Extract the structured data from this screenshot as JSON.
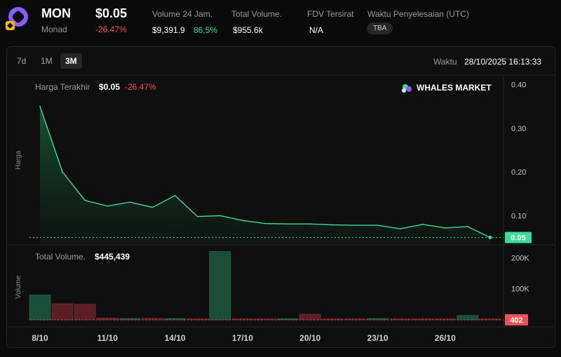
{
  "header": {
    "ticker": "MON",
    "chain": "Monad",
    "price": "$0.05",
    "price_change": "-26.47%",
    "volume24_label": "Volume 24 Jam.",
    "volume24_value": "$9,391.9",
    "volume24_change": "86.5%",
    "total_volume_label": "Total Volume.",
    "total_volume_value": "$955.6k",
    "fdv_label": "FDV Tersirat",
    "fdv_value": "N/A",
    "settle_label": "Waktu Penyelesaian (UTC)",
    "settle_value": "TBA"
  },
  "toolbar": {
    "timeframes": [
      "7d",
      "1M",
      "3M"
    ],
    "active": "3M",
    "time_label": "Waktu",
    "time_value": "28/10/2025 16:13:33"
  },
  "colors": {
    "accent_green": "#3ddc97",
    "down_red": "#f0505a",
    "brand_purple": "#8b5cf6"
  },
  "chart_data": [
    {
      "type": "area",
      "legend_label": "Harga Terakhir",
      "legend_value": "$0.05",
      "legend_change": "-26.47%",
      "watermark": "WHALES MARKET",
      "ylabel": "Harga",
      "ylim": [
        0.035,
        0.42
      ],
      "yticks": [
        0.1,
        0.2,
        0.3,
        0.4
      ],
      "ytick_labels": [
        "0.10",
        "0.20",
        "0.30",
        "0.40"
      ],
      "last_price_label": "0.05",
      "last_price": 0.05,
      "x_day_index": [
        0,
        1,
        2,
        3,
        4,
        5,
        6,
        7,
        8,
        9,
        10,
        11,
        12,
        13,
        14,
        15,
        16,
        17,
        18,
        19,
        20
      ],
      "values": [
        0.35,
        0.2,
        0.135,
        0.122,
        0.131,
        0.119,
        0.146,
        0.098,
        0.1,
        0.089,
        0.082,
        0.081,
        0.081,
        0.079,
        0.078,
        0.078,
        0.07,
        0.08,
        0.072,
        0.075,
        0.05
      ]
    },
    {
      "type": "bar",
      "legend_label": "Total Volume.",
      "legend_value": "$445,439",
      "ylabel": "Volume",
      "ylim": [
        0,
        235000
      ],
      "yticks": [
        100000,
        200000
      ],
      "ytick_labels": [
        "100K",
        "200K"
      ],
      "last_volume_label": "402",
      "x_day_index": [
        0,
        1,
        2,
        3,
        4,
        5,
        6,
        7,
        8,
        9,
        10,
        11,
        12,
        13,
        14,
        15,
        16,
        17,
        18,
        19,
        20
      ],
      "values": [
        80000,
        52000,
        50000,
        6000,
        4000,
        5000,
        4000,
        3000,
        220000,
        3000,
        2000,
        3000,
        18000,
        2000,
        2000,
        4000,
        2000,
        2000,
        2000,
        14000,
        402
      ],
      "up": [
        true,
        false,
        false,
        false,
        true,
        false,
        true,
        false,
        true,
        false,
        false,
        true,
        false,
        false,
        false,
        true,
        false,
        false,
        false,
        true,
        false
      ]
    }
  ],
  "xaxis": {
    "tick_labels": [
      "8/10",
      "11/10",
      "14/10",
      "17/10",
      "20/10",
      "23/10",
      "26/10"
    ],
    "tick_day_index": [
      0,
      3,
      6,
      9,
      12,
      15,
      18
    ]
  }
}
